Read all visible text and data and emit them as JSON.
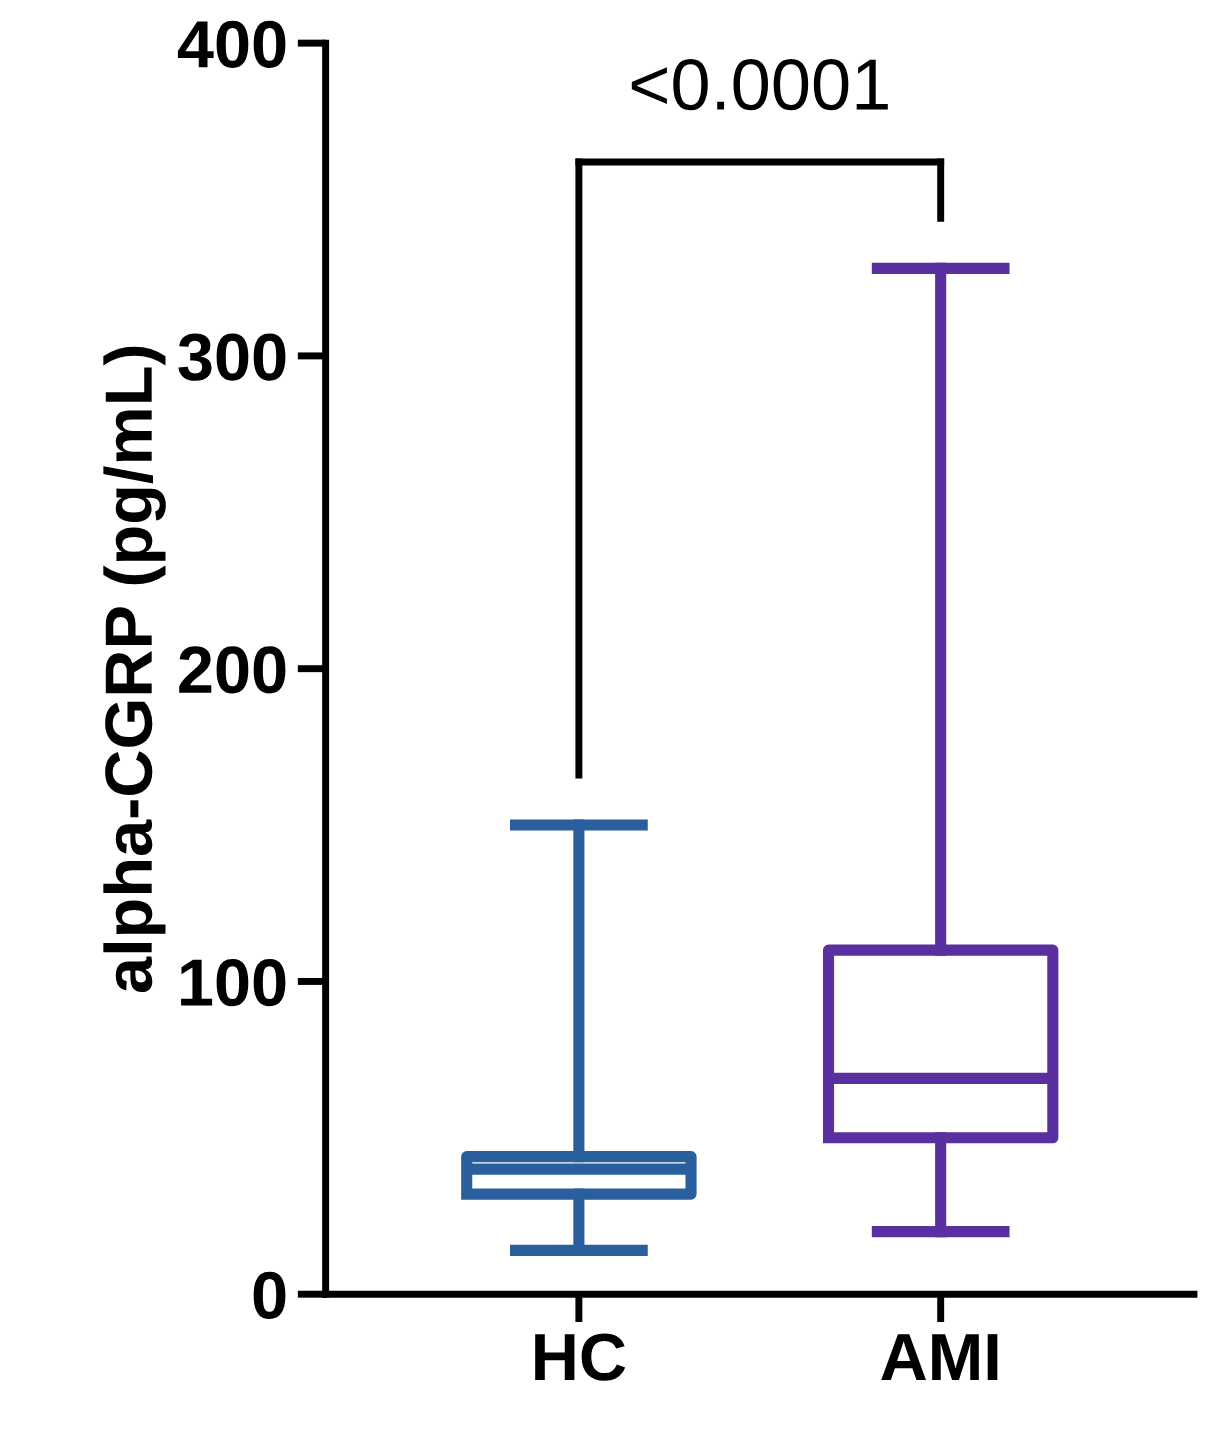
{
  "chart_data": {
    "type": "box",
    "ylabel": "alpha-CGRP (pg/mL)",
    "categories": [
      "HC",
      "AMI"
    ],
    "boxes": [
      {
        "low": 14,
        "q1": 32,
        "median": 40,
        "q3": 44,
        "high": 150
      },
      {
        "low": 20,
        "q1": 50,
        "median": 69,
        "q3": 110,
        "high": 328
      }
    ],
    "colors": [
      "#2a5f9e",
      "#5a2fa0"
    ],
    "ylim": [
      0,
      400
    ],
    "yticks": [
      0,
      100,
      200,
      300,
      400
    ],
    "annotations": [
      "<0.0001"
    ],
    "grid": false,
    "legend": false
  }
}
